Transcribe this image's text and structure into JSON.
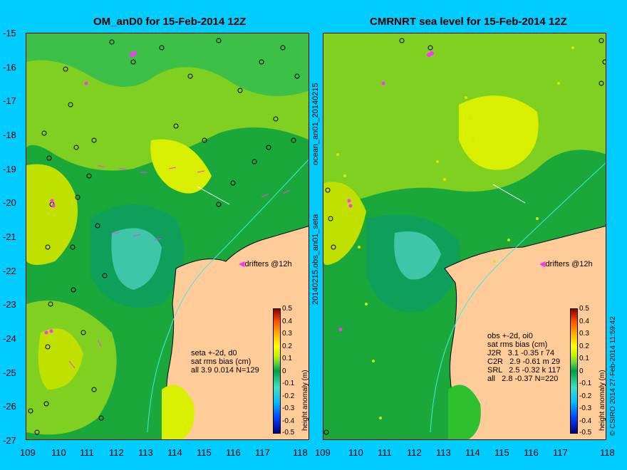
{
  "left_panel": {
    "title": "OM_anD0 for 15-Feb-2014 12Z",
    "side_label": "ocean_an01_20140215",
    "drifter_label": "drifters @12h",
    "stats": [
      "seta +-2d, d0",
      "sat rms bias (cm)",
      "all 3.9 0.014 N=129"
    ]
  },
  "right_panel": {
    "title": "CMRNRT sea level  for 15-Feb-2014 12Z",
    "drifter_label": "drifters @12h",
    "stats": [
      "obs +-2d, oi0",
      "sat rms bias (cm)",
      "J2R   3.1 -0.35 r 74",
      "C2R   2.9 -0.61 m 29",
      "SRL   2.5 -0.32 k 117",
      "all   2.8 -0.37 N=220"
    ]
  },
  "between_label": "20140215.obs_an01_seta",
  "colorbar_label": "height anomaly (m)",
  "colorbar_ticks": [
    "0.5",
    "0.4",
    "0.3",
    "0.2",
    "0.1",
    "0",
    "-0.1",
    "-0.2",
    "-0.3",
    "-0.4",
    "-0.5"
  ],
  "credit": "© CSIRO 2014  27-Feb-2014 11:59:42",
  "lat_ticks": [
    "-15",
    "-16",
    "-17",
    "-18",
    "-19",
    "-20",
    "-21",
    "-22",
    "-23",
    "-24",
    "-25",
    "-26",
    "-27"
  ],
  "lon_ticks": [
    "109",
    "110",
    "111",
    "112",
    "113",
    "114",
    "115",
    "116",
    "117",
    "118"
  ],
  "colors": {
    "background": "#00ccff",
    "land": "#ffcc99",
    "sea_green": "#2ec02e",
    "drifter": "#ff33ff"
  }
}
